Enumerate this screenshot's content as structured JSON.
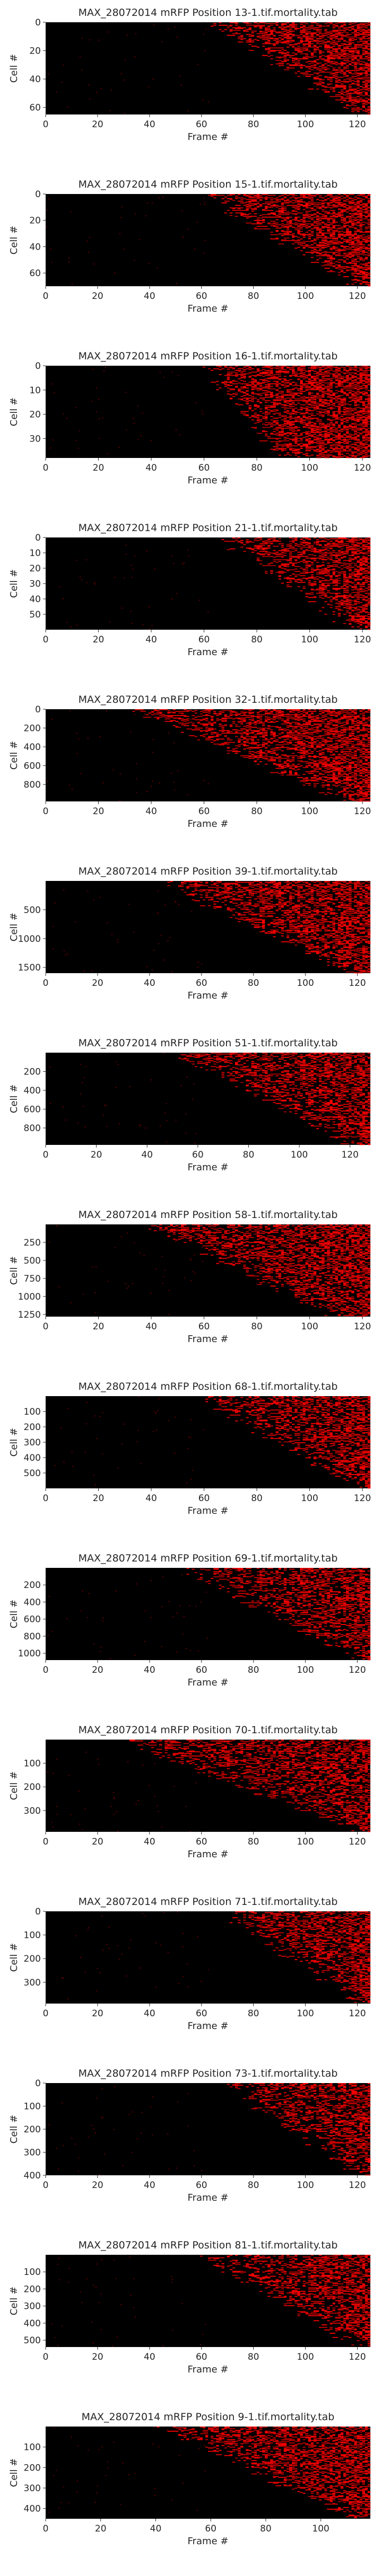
{
  "chart_data": [
    {
      "type": "heatmap",
      "title": "MAX_28072014 mRFP Position 13-1.tif.mortality.tab",
      "xlabel": "Frame #",
      "ylabel": "Cell #",
      "xlim": [
        0,
        125
      ],
      "ylim": [
        0,
        65
      ],
      "xticks": [
        0,
        20,
        40,
        60,
        80,
        100,
        120
      ],
      "yticks": [
        0,
        20,
        40,
        60
      ],
      "grid": false,
      "colors": {
        "background": "#000000",
        "signal": "#ff0000"
      },
      "rows": 65,
      "onset_frame_range": [
        65,
        122
      ],
      "density": 0.55
    },
    {
      "type": "heatmap",
      "title": "MAX_28072014 mRFP Position 15-1.tif.mortality.tab",
      "xlabel": "Frame #",
      "ylabel": "Cell #",
      "xlim": [
        0,
        125
      ],
      "ylim": [
        0,
        70
      ],
      "xticks": [
        0,
        20,
        40,
        60,
        80,
        100,
        120
      ],
      "yticks": [
        0,
        20,
        40,
        60
      ],
      "grid": false,
      "colors": {
        "background": "#000000",
        "signal": "#ff0000"
      },
      "rows": 70,
      "onset_frame_range": [
        62,
        120
      ],
      "density": 0.55
    },
    {
      "type": "heatmap",
      "title": "MAX_28072014 mRFP Position 16-1.tif.mortality.tab",
      "xlabel": "Frame #",
      "ylabel": "Cell #",
      "xlim": [
        0,
        123
      ],
      "ylim": [
        0,
        38
      ],
      "xticks": [
        0,
        20,
        40,
        60,
        80,
        100,
        120
      ],
      "yticks": [
        0,
        10,
        20,
        30
      ],
      "grid": false,
      "colors": {
        "background": "#000000",
        "signal": "#ff0000"
      },
      "rows": 38,
      "onset_frame_range": [
        62,
        92
      ],
      "density": 0.65
    },
    {
      "type": "heatmap",
      "title": "MAX_28072014 mRFP Position 21-1.tif.mortality.tab",
      "xlabel": "Frame #",
      "ylabel": "Cell #",
      "xlim": [
        0,
        123
      ],
      "ylim": [
        0,
        60
      ],
      "xticks": [
        0,
        20,
        40,
        60,
        80,
        100,
        120
      ],
      "yticks": [
        0,
        10,
        20,
        30,
        40,
        50
      ],
      "grid": false,
      "colors": {
        "background": "#000000",
        "signal": "#ff0000"
      },
      "rows": 60,
      "onset_frame_range": [
        68,
        118
      ],
      "density": 0.5
    },
    {
      "type": "heatmap",
      "title": "MAX_28072014 mRFP Position 32-1.tif.mortality.tab",
      "xlabel": "Frame #",
      "ylabel": "Cell #",
      "xlim": [
        0,
        123
      ],
      "ylim": [
        0,
        980
      ],
      "xticks": [
        0,
        20,
        40,
        60,
        80,
        100,
        120
      ],
      "yticks": [
        0,
        200,
        400,
        600,
        800
      ],
      "grid": false,
      "colors": {
        "background": "#000000",
        "signal": "#ff0000"
      },
      "rows": 980,
      "onset_frame_range": [
        35,
        115
      ],
      "density": 0.55
    },
    {
      "type": "heatmap",
      "title": "MAX_28072014 mRFP Position 39-1.tif.mortality.tab",
      "xlabel": "Frame #",
      "ylabel": "Cell #",
      "xlim": [
        0,
        125
      ],
      "ylim": [
        0,
        1600
      ],
      "xticks": [
        0,
        20,
        40,
        60,
        80,
        100,
        120
      ],
      "yticks": [
        500,
        1000,
        1500
      ],
      "grid": false,
      "colors": {
        "background": "#000000",
        "signal": "#ff0000"
      },
      "rows": 1600,
      "onset_frame_range": [
        45,
        118
      ],
      "density": 0.55
    },
    {
      "type": "heatmap",
      "title": "MAX_28072014 mRFP Position 51-1.tif.mortality.tab",
      "xlabel": "Frame #",
      "ylabel": "Cell #",
      "xlim": [
        0,
        128
      ],
      "ylim": [
        0,
        980
      ],
      "xticks": [
        0,
        20,
        40,
        60,
        80,
        100,
        120
      ],
      "yticks": [
        200,
        400,
        600,
        800
      ],
      "grid": false,
      "colors": {
        "background": "#000000",
        "signal": "#ff0000"
      },
      "rows": 980,
      "onset_frame_range": [
        52,
        122
      ],
      "density": 0.5
    },
    {
      "type": "heatmap",
      "title": "MAX_28072014 mRFP Position 58-1.tif.mortality.tab",
      "xlabel": "Frame #",
      "ylabel": "Cell #",
      "xlim": [
        0,
        123
      ],
      "ylim": [
        0,
        1280
      ],
      "xticks": [
        0,
        20,
        40,
        60,
        80,
        100,
        120
      ],
      "yticks": [
        250,
        500,
        750,
        1000,
        1250
      ],
      "grid": false,
      "colors": {
        "background": "#000000",
        "signal": "#ff0000"
      },
      "rows": 1280,
      "onset_frame_range": [
        40,
        110
      ],
      "density": 0.55
    },
    {
      "type": "heatmap",
      "title": "MAX_28072014 mRFP Position 68-1.tif.mortality.tab",
      "xlabel": "Frame #",
      "ylabel": "Cell #",
      "xlim": [
        0,
        123
      ],
      "ylim": [
        0,
        600
      ],
      "xticks": [
        0,
        20,
        40,
        60,
        80,
        100,
        120
      ],
      "yticks": [
        100,
        200,
        300,
        400,
        500
      ],
      "grid": false,
      "colors": {
        "background": "#000000",
        "signal": "#ff0000"
      },
      "rows": 600,
      "onset_frame_range": [
        60,
        120
      ],
      "density": 0.5
    },
    {
      "type": "heatmap",
      "title": "MAX_28072014 mRFP Position 69-1.tif.mortality.tab",
      "xlabel": "Frame #",
      "ylabel": "Cell #",
      "xlim": [
        0,
        125
      ],
      "ylim": [
        0,
        1080
      ],
      "xticks": [
        0,
        20,
        40,
        60,
        80,
        100,
        120
      ],
      "yticks": [
        200,
        400,
        600,
        800,
        1000
      ],
      "grid": false,
      "colors": {
        "background": "#000000",
        "signal": "#ff0000"
      },
      "rows": 1080,
      "onset_frame_range": [
        55,
        122
      ],
      "density": 0.45
    },
    {
      "type": "heatmap",
      "title": "MAX_28072014 mRFP Position 70-1.tif.mortality.tab",
      "xlabel": "Frame #",
      "ylabel": "Cell #",
      "xlim": [
        0,
        125
      ],
      "ylim": [
        0,
        390
      ],
      "xticks": [
        0,
        20,
        40,
        60,
        80,
        100,
        120
      ],
      "yticks": [
        100,
        200,
        300
      ],
      "grid": false,
      "colors": {
        "background": "#000000",
        "signal": "#ff0000"
      },
      "rows": 390,
      "onset_frame_range": [
        30,
        122
      ],
      "density": 0.45
    },
    {
      "type": "heatmap",
      "title": "MAX_28072014 mRFP Position 71-1.tif.mortality.tab",
      "xlabel": "Frame #",
      "ylabel": "Cell #",
      "xlim": [
        0,
        125
      ],
      "ylim": [
        0,
        390
      ],
      "xticks": [
        0,
        20,
        40,
        60,
        80,
        100,
        120
      ],
      "yticks": [
        0,
        100,
        200,
        300
      ],
      "grid": false,
      "colors": {
        "background": "#000000",
        "signal": "#ff0000"
      },
      "rows": 390,
      "onset_frame_range": [
        70,
        122
      ],
      "density": 0.5
    },
    {
      "type": "heatmap",
      "title": "MAX_28072014 mRFP Position 73-1.tif.mortality.tab",
      "xlabel": "Frame #",
      "ylabel": "Cell #",
      "xlim": [
        0,
        125
      ],
      "ylim": [
        0,
        400
      ],
      "xticks": [
        0,
        20,
        40,
        60,
        80,
        100,
        120
      ],
      "yticks": [
        0,
        100,
        200,
        300,
        400
      ],
      "grid": false,
      "colors": {
        "background": "#000000",
        "signal": "#ff0000"
      },
      "rows": 400,
      "onset_frame_range": [
        70,
        122
      ],
      "density": 0.45
    },
    {
      "type": "heatmap",
      "title": "MAX_28072014 mRFP Position 81-1.tif.mortality.tab",
      "xlabel": "Frame #",
      "ylabel": "Cell #",
      "xlim": [
        0,
        125
      ],
      "ylim": [
        0,
        540
      ],
      "xticks": [
        0,
        20,
        40,
        60,
        80,
        100,
        120
      ],
      "yticks": [
        100,
        200,
        300,
        400,
        500
      ],
      "grid": false,
      "colors": {
        "background": "#000000",
        "signal": "#ff0000"
      },
      "rows": 540,
      "onset_frame_range": [
        62,
        122
      ],
      "density": 0.45
    },
    {
      "type": "heatmap",
      "title": "MAX_28072014 mRFP Position 9-1.tif.mortality.tab",
      "xlabel": "Frame #",
      "ylabel": "Cell #",
      "xlim": [
        0,
        118
      ],
      "ylim": [
        0,
        450
      ],
      "xticks": [
        0,
        20,
        40,
        60,
        80,
        100
      ],
      "yticks": [
        100,
        200,
        300,
        400
      ],
      "grid": false,
      "colors": {
        "background": "#000000",
        "signal": "#ff0000"
      },
      "rows": 450,
      "onset_frame_range": [
        45,
        112
      ],
      "density": 0.55
    }
  ]
}
